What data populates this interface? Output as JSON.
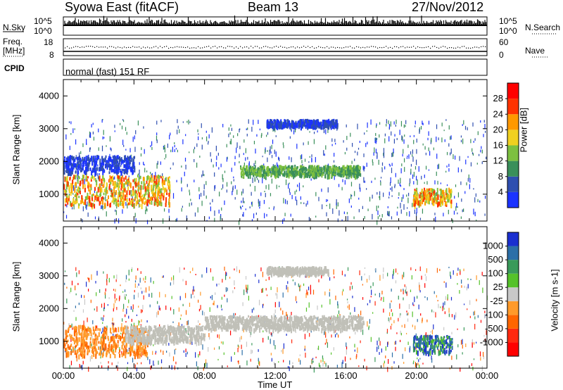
{
  "header": {
    "station": "Syowa East (fitACF)",
    "beam": "Beam 13",
    "date": "27/Nov/2012"
  },
  "left_labels": {
    "nsky": "N.Sky",
    "freq_line1": "Freq.",
    "freq_line2": "[MHz]",
    "cpid": "CPID"
  },
  "right_labels": {
    "nsearch": "N.Search",
    "nave": "Nave"
  },
  "cpid_text": "normal (fast) 151 RF",
  "noise_axis_ticks": {
    "top": "10^5",
    "bottom": "10^0"
  },
  "freq_axis_ticks": {
    "top": "18",
    "bottom": "8"
  },
  "nave_axis_ticks": {
    "top": "60",
    "bottom": "0"
  },
  "colors": {
    "power_scale": [
      "#1b33ff",
      "#2f4fb0",
      "#3a8f5a",
      "#7dc040",
      "#f0d020",
      "#ff9900",
      "#ff3300",
      "#ff0000"
    ],
    "velocity_scale": [
      "#1a2fd0",
      "#2c6fa8",
      "#3a9a5a",
      "#55c22a",
      "#c8c8c8",
      "#ff9a2a",
      "#ff6600",
      "#ff2a10",
      "#ff0000"
    ],
    "ground_scatter": "#c0c0b8"
  },
  "chart_data": [
    {
      "type": "heatmap",
      "name": "power",
      "ylabel": "Slant Range [km]",
      "ylim": [
        180,
        4500
      ],
      "yticks": [
        "1000",
        "2000",
        "3000",
        "4000"
      ],
      "xlim": [
        "00:00",
        "24:00"
      ],
      "colorbar_label": "Power [dB]",
      "colorbar_ticks": [
        "4",
        "8",
        "12",
        "16",
        "20",
        "24",
        "28"
      ],
      "features": [
        {
          "t": [
            0.0,
            6.0
          ],
          "r": [
            700,
            1600
          ],
          "level": "high"
        },
        {
          "t": [
            10.0,
            16.8
          ],
          "r": [
            1600,
            1900
          ],
          "level": "medium"
        },
        {
          "t": [
            11.5,
            15.5
          ],
          "r": [
            3100,
            3300
          ],
          "level": "low"
        },
        {
          "t": [
            19.8,
            22.0
          ],
          "r": [
            700,
            1200
          ],
          "level": "high"
        },
        {
          "t": [
            0.0,
            4.0
          ],
          "r": [
            1700,
            2200
          ],
          "level": "low"
        }
      ]
    },
    {
      "type": "heatmap",
      "name": "velocity",
      "ylabel": "Slant Range [km]",
      "xlabel": "Time UT",
      "ylim": [
        180,
        4500
      ],
      "yticks": [
        "1000",
        "2000",
        "3000",
        "4000"
      ],
      "xticks": [
        "00:00",
        "04:00",
        "08:00",
        "12:00",
        "16:00",
        "20:00",
        "00:00"
      ],
      "colorbar_label": "Velocity [m s-1]",
      "colorbar_ticks": [
        "1000",
        "500",
        "100",
        "25",
        "-25",
        "-100",
        "-500",
        "-1000"
      ],
      "features": [
        {
          "t": [
            0.0,
            4.8
          ],
          "r": [
            600,
            1500
          ],
          "level": "-300"
        },
        {
          "t": [
            3.5,
            8.0
          ],
          "r": [
            1000,
            1500
          ],
          "level": "ground"
        },
        {
          "t": [
            8.0,
            17.0
          ],
          "r": [
            1400,
            1800
          ],
          "level": "ground"
        },
        {
          "t": [
            11.5,
            15.0
          ],
          "r": [
            3100,
            3300
          ],
          "level": "ground"
        },
        {
          "t": [
            19.8,
            22.0
          ],
          "r": [
            700,
            1200
          ],
          "level": "600"
        }
      ]
    }
  ]
}
